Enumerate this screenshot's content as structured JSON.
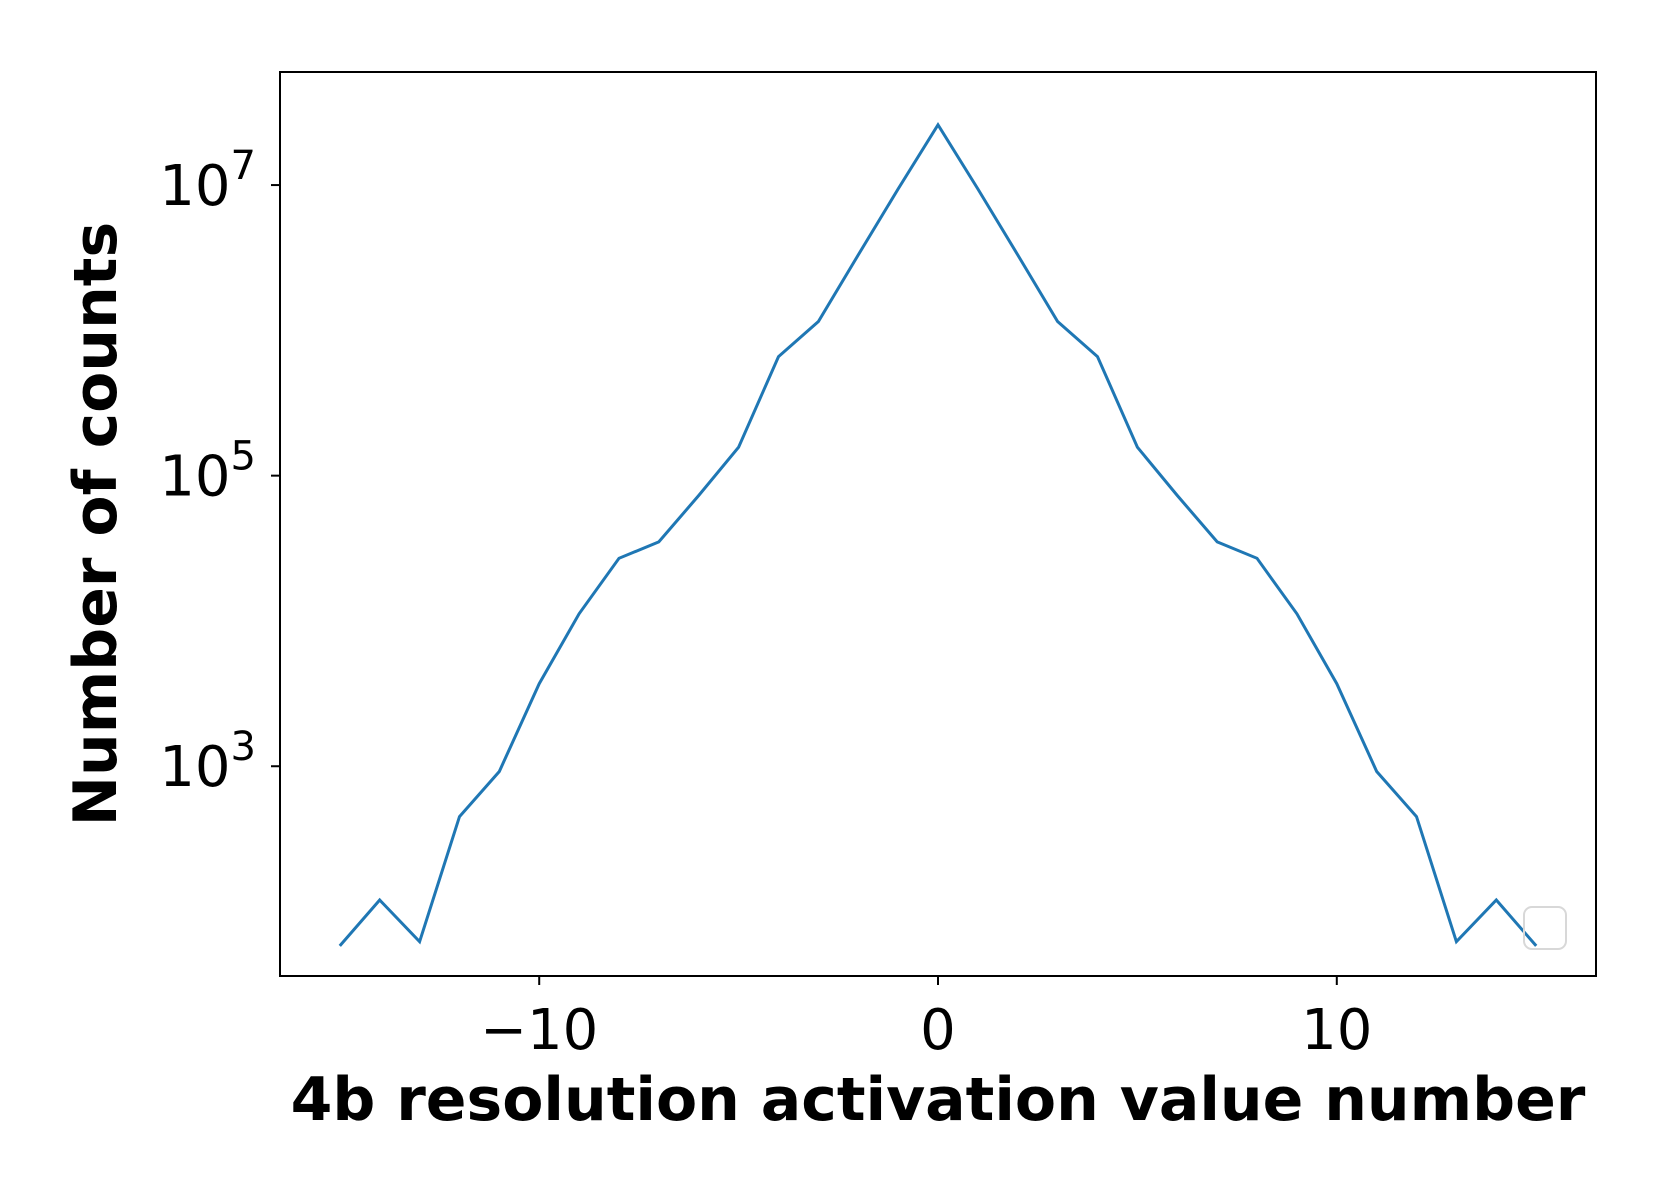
{
  "chart_data": {
    "type": "line",
    "title": "",
    "xlabel": "4b resolution activation value number",
    "ylabel": "Number of counts",
    "yscale": "log",
    "xlim": [
      -16.5,
      16.5
    ],
    "ylim": [
      36,
      60000000
    ],
    "xticks": [
      -10,
      0,
      10
    ],
    "xtick_labels": [
      "−10",
      "0",
      "10"
    ],
    "yticks": [
      1000,
      100000,
      10000000
    ],
    "ytick_labels": [
      {
        "base": "10",
        "exp": "3"
      },
      {
        "base": "10",
        "exp": "5"
      },
      {
        "base": "10",
        "exp": "7"
      }
    ],
    "grid": false,
    "legend": {
      "placement": "lower right",
      "entries": []
    },
    "series": [
      {
        "color": "#1f77b4",
        "x": [
          -15,
          -14,
          -13,
          -12,
          -11,
          -10,
          -9,
          -8,
          -7,
          -6,
          -5,
          -4,
          -3,
          -2,
          -1,
          0,
          1,
          2,
          3,
          4,
          5,
          6,
          7,
          8,
          9,
          10,
          11,
          12,
          13,
          14,
          15
        ],
        "y": [
          58,
          120,
          62,
          450,
          920,
          3700,
          11200,
          27000,
          35000,
          73000,
          157000,
          660000,
          1150000,
          3300000,
          9400000,
          26000000,
          9400000,
          3300000,
          1150000,
          660000,
          157000,
          73000,
          35000,
          27000,
          11200,
          3700,
          920,
          450,
          62,
          120,
          58
        ]
      }
    ]
  }
}
